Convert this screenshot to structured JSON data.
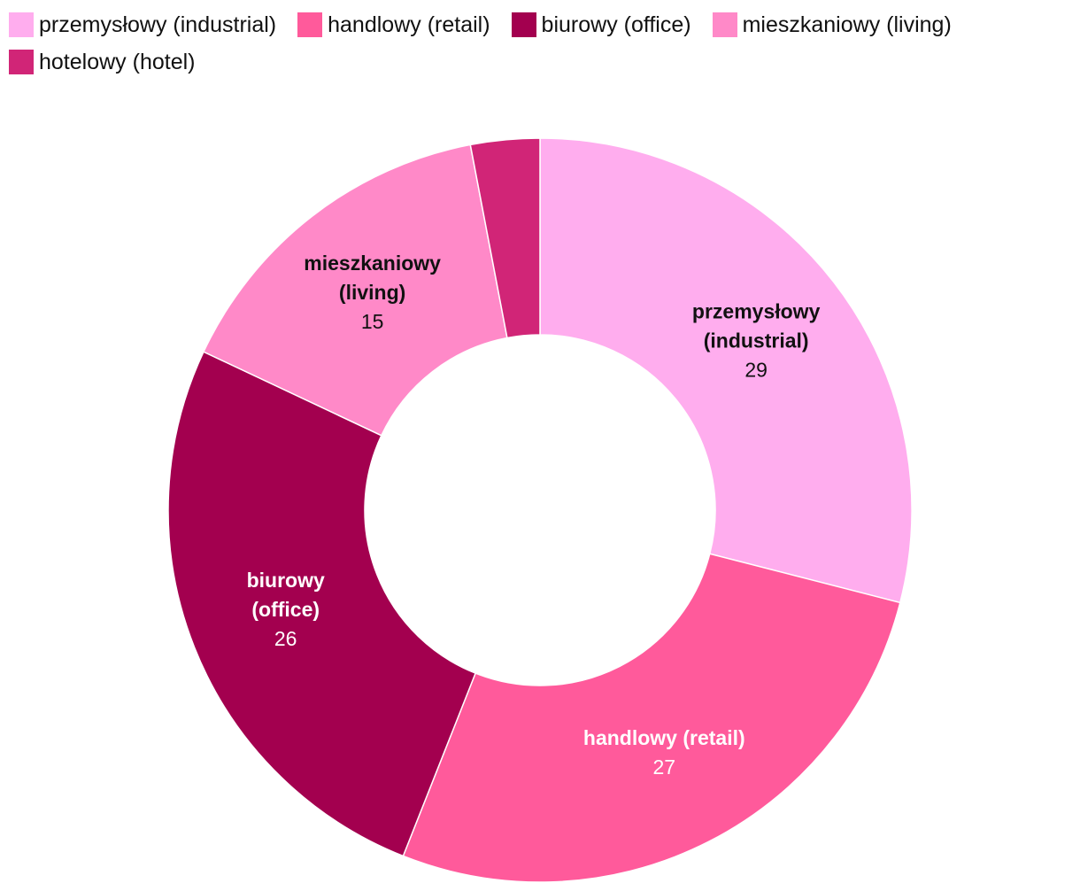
{
  "chart_data": {
    "type": "pie",
    "variant": "donut",
    "legend_position": "top-left",
    "categories": [
      "przemysłowy (industrial)",
      "handlowy (retail)",
      "biurowy (office)",
      "mieszkaniowy (living)",
      "hotelowy (hotel)"
    ],
    "label_lines": [
      [
        "przemysłowy",
        "(industrial)"
      ],
      [
        "handlowy (retail)"
      ],
      [
        "biurowy",
        "(office)"
      ],
      [
        "mieszkaniowy",
        "(living)"
      ],
      []
    ],
    "values": [
      29,
      27,
      26,
      15,
      3
    ],
    "value_labels": [
      "29",
      "27",
      "26",
      "15",
      ""
    ],
    "colors": [
      "#ffadee",
      "#ff5a9b",
      "#a3004f",
      "#ff89c8",
      "#d12577"
    ],
    "label_colors": [
      "#111111",
      "#ffffff",
      "#ffffff",
      "#111111",
      "#111111"
    ]
  }
}
